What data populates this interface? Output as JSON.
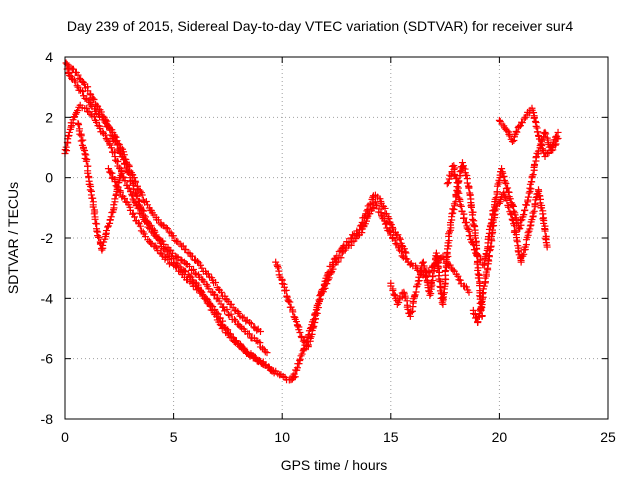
{
  "chart_data": {
    "type": "scatter",
    "title": "Day 239 of 2015, Sidereal Day-to-day VTEC variation (SDTVAR) for receiver sur4",
    "xlabel": "GPS time / hours",
    "ylabel": "SDTVAR / TECUs",
    "xlim": [
      0,
      25
    ],
    "ylim": [
      -8,
      4
    ],
    "xticks": [
      0,
      5,
      10,
      15,
      20,
      25
    ],
    "yticks": [
      -8,
      -6,
      -4,
      -2,
      0,
      2,
      4
    ],
    "grid": true,
    "marker": "+",
    "color": "#ff0000",
    "series": [
      {
        "name": "track-1",
        "x": [
          0.05,
          0.15,
          0.35,
          0.6,
          0.9,
          1.3,
          1.8,
          2.2,
          2.5,
          2.8,
          3.1,
          3.4,
          3.8,
          4.3,
          4.8,
          5.3,
          5.8,
          6.3,
          6.8,
          7.2,
          7.6,
          8.0,
          8.5,
          9.0
        ],
        "y": [
          3.8,
          3.7,
          3.6,
          3.4,
          3.1,
          2.6,
          2.0,
          1.5,
          1.1,
          0.6,
          0.1,
          -0.4,
          -0.9,
          -1.4,
          -1.8,
          -2.2,
          -2.6,
          -3.0,
          -3.4,
          -3.8,
          -4.2,
          -4.5,
          -4.8,
          -5.1
        ]
      },
      {
        "name": "track-2",
        "x": [
          0.1,
          0.3,
          0.6,
          1.0,
          1.4,
          1.9,
          2.3,
          2.7,
          3.0,
          3.3,
          3.7,
          4.2,
          4.8,
          5.5,
          6.2,
          6.8,
          7.3,
          7.8,
          8.3,
          8.8,
          9.3
        ],
        "y": [
          3.6,
          3.3,
          3.0,
          2.6,
          2.2,
          1.8,
          1.2,
          0.6,
          0.0,
          -0.6,
          -1.3,
          -1.9,
          -2.4,
          -2.8,
          -3.3,
          -3.8,
          -4.3,
          -4.7,
          -5.1,
          -5.4,
          -5.8
        ]
      },
      {
        "name": "track-3",
        "x": [
          0.0,
          0.2,
          0.4,
          0.7,
          1.0,
          1.4,
          1.9,
          2.3,
          2.7,
          3.1,
          3.5,
          4.0,
          4.6,
          5.2,
          5.8,
          6.3,
          6.8,
          7.2,
          7.6,
          8.0,
          8.4,
          8.8,
          9.2,
          9.6
        ],
        "y": [
          0.8,
          1.5,
          2.0,
          2.4,
          2.3,
          1.9,
          1.3,
          0.7,
          0.0,
          -0.6,
          -1.2,
          -1.8,
          -2.4,
          -2.9,
          -3.3,
          -3.8,
          -4.4,
          -4.9,
          -5.3,
          -5.5,
          -5.8,
          -6.0,
          -6.2,
          -6.4
        ]
      },
      {
        "name": "track-4",
        "x": [
          2.0,
          2.4,
          2.8,
          3.2,
          3.6,
          4.0,
          4.5,
          5.0,
          5.5,
          6.0,
          6.5,
          7.0,
          7.4,
          7.8,
          8.2,
          8.6,
          9.0,
          9.4,
          9.8,
          10.2,
          10.6
        ],
        "y": [
          0.3,
          -0.3,
          -0.8,
          -1.3,
          -1.8,
          -2.2,
          -2.6,
          -2.9,
          -3.3,
          -3.6,
          -4.0,
          -4.5,
          -5.0,
          -5.4,
          -5.7,
          -5.9,
          -6.1,
          -6.3,
          -6.5,
          -6.7,
          -6.6
        ]
      },
      {
        "name": "track-5",
        "x": [
          9.7,
          10.0,
          10.3,
          10.6,
          10.9,
          11.2,
          11.5,
          11.8,
          12.1,
          12.4,
          12.8,
          13.2,
          13.6,
          13.9,
          14.2,
          14.5,
          14.8,
          15.1,
          15.4,
          15.7
        ],
        "y": [
          -2.8,
          -3.4,
          -4.1,
          -4.7,
          -5.3,
          -5.6,
          -4.8,
          -3.8,
          -3.2,
          -2.7,
          -2.3,
          -2.0,
          -1.6,
          -1.1,
          -0.6,
          -0.7,
          -1.2,
          -1.7,
          -2.0,
          -2.5
        ]
      },
      {
        "name": "track-6",
        "x": [
          10.4,
          10.7,
          11.0,
          11.3,
          11.6,
          11.9,
          12.2,
          12.5,
          12.9,
          13.3,
          13.7,
          14.0,
          14.3,
          14.6,
          15.0,
          15.4,
          15.8,
          16.2,
          16.6,
          17.0,
          17.4,
          17.8,
          18.2,
          18.6
        ],
        "y": [
          -6.7,
          -6.3,
          -5.7,
          -5.0,
          -4.3,
          -3.7,
          -3.2,
          -2.8,
          -2.4,
          -2.1,
          -1.7,
          -1.2,
          -0.8,
          -1.3,
          -1.9,
          -2.4,
          -2.8,
          -3.0,
          -3.3,
          -2.9,
          -2.6,
          -3.0,
          -3.4,
          -3.8
        ]
      },
      {
        "name": "track-7",
        "x": [
          15.0,
          15.3,
          15.6,
          15.9,
          16.2,
          16.5,
          16.8,
          17.1,
          17.4,
          17.7,
          18.0,
          18.3,
          18.6,
          18.9,
          19.2
        ],
        "y": [
          -3.5,
          -4.2,
          -3.8,
          -4.6,
          -3.6,
          -2.8,
          -3.9,
          -2.5,
          -4.2,
          -1.8,
          -0.6,
          0.5,
          -0.3,
          -2.0,
          -4.6
        ]
      },
      {
        "name": "track-8",
        "x": [
          17.6,
          17.9,
          18.2,
          18.5,
          18.9,
          19.3,
          19.7,
          20.1,
          20.5,
          20.9,
          21.3,
          21.7,
          22.1,
          22.4,
          22.7
        ],
        "y": [
          -0.2,
          0.4,
          -0.9,
          -1.6,
          -2.5,
          -2.9,
          -1.2,
          0.3,
          -0.7,
          -1.7,
          -0.8,
          0.7,
          1.5,
          0.9,
          1.3
        ]
      },
      {
        "name": "track-9",
        "x": [
          20.0,
          20.3,
          20.6,
          20.9,
          21.2,
          21.5,
          21.8,
          22.1,
          22.4,
          22.7
        ],
        "y": [
          1.9,
          1.6,
          1.2,
          1.7,
          2.0,
          2.3,
          1.4,
          0.7,
          1.0,
          1.5
        ]
      },
      {
        "name": "track-10",
        "x": [
          0.6,
          0.9,
          1.1,
          1.3,
          1.5,
          1.7,
          2.0,
          2.3,
          2.6
        ],
        "y": [
          1.8,
          0.9,
          0.0,
          -0.9,
          -1.8,
          -2.4,
          -1.6,
          -0.8,
          0.2
        ]
      },
      {
        "name": "track-11",
        "x": [
          18.8,
          19.0,
          19.2,
          19.4,
          19.6,
          19.8,
          20.2,
          20.6,
          21.0,
          21.4,
          21.8,
          22.0,
          22.2
        ],
        "y": [
          -4.4,
          -4.8,
          -4.1,
          -3.2,
          -2.3,
          -1.1,
          -0.5,
          -1.4,
          -2.8,
          -1.7,
          -0.4,
          -1.2,
          -2.3
        ]
      }
    ]
  }
}
